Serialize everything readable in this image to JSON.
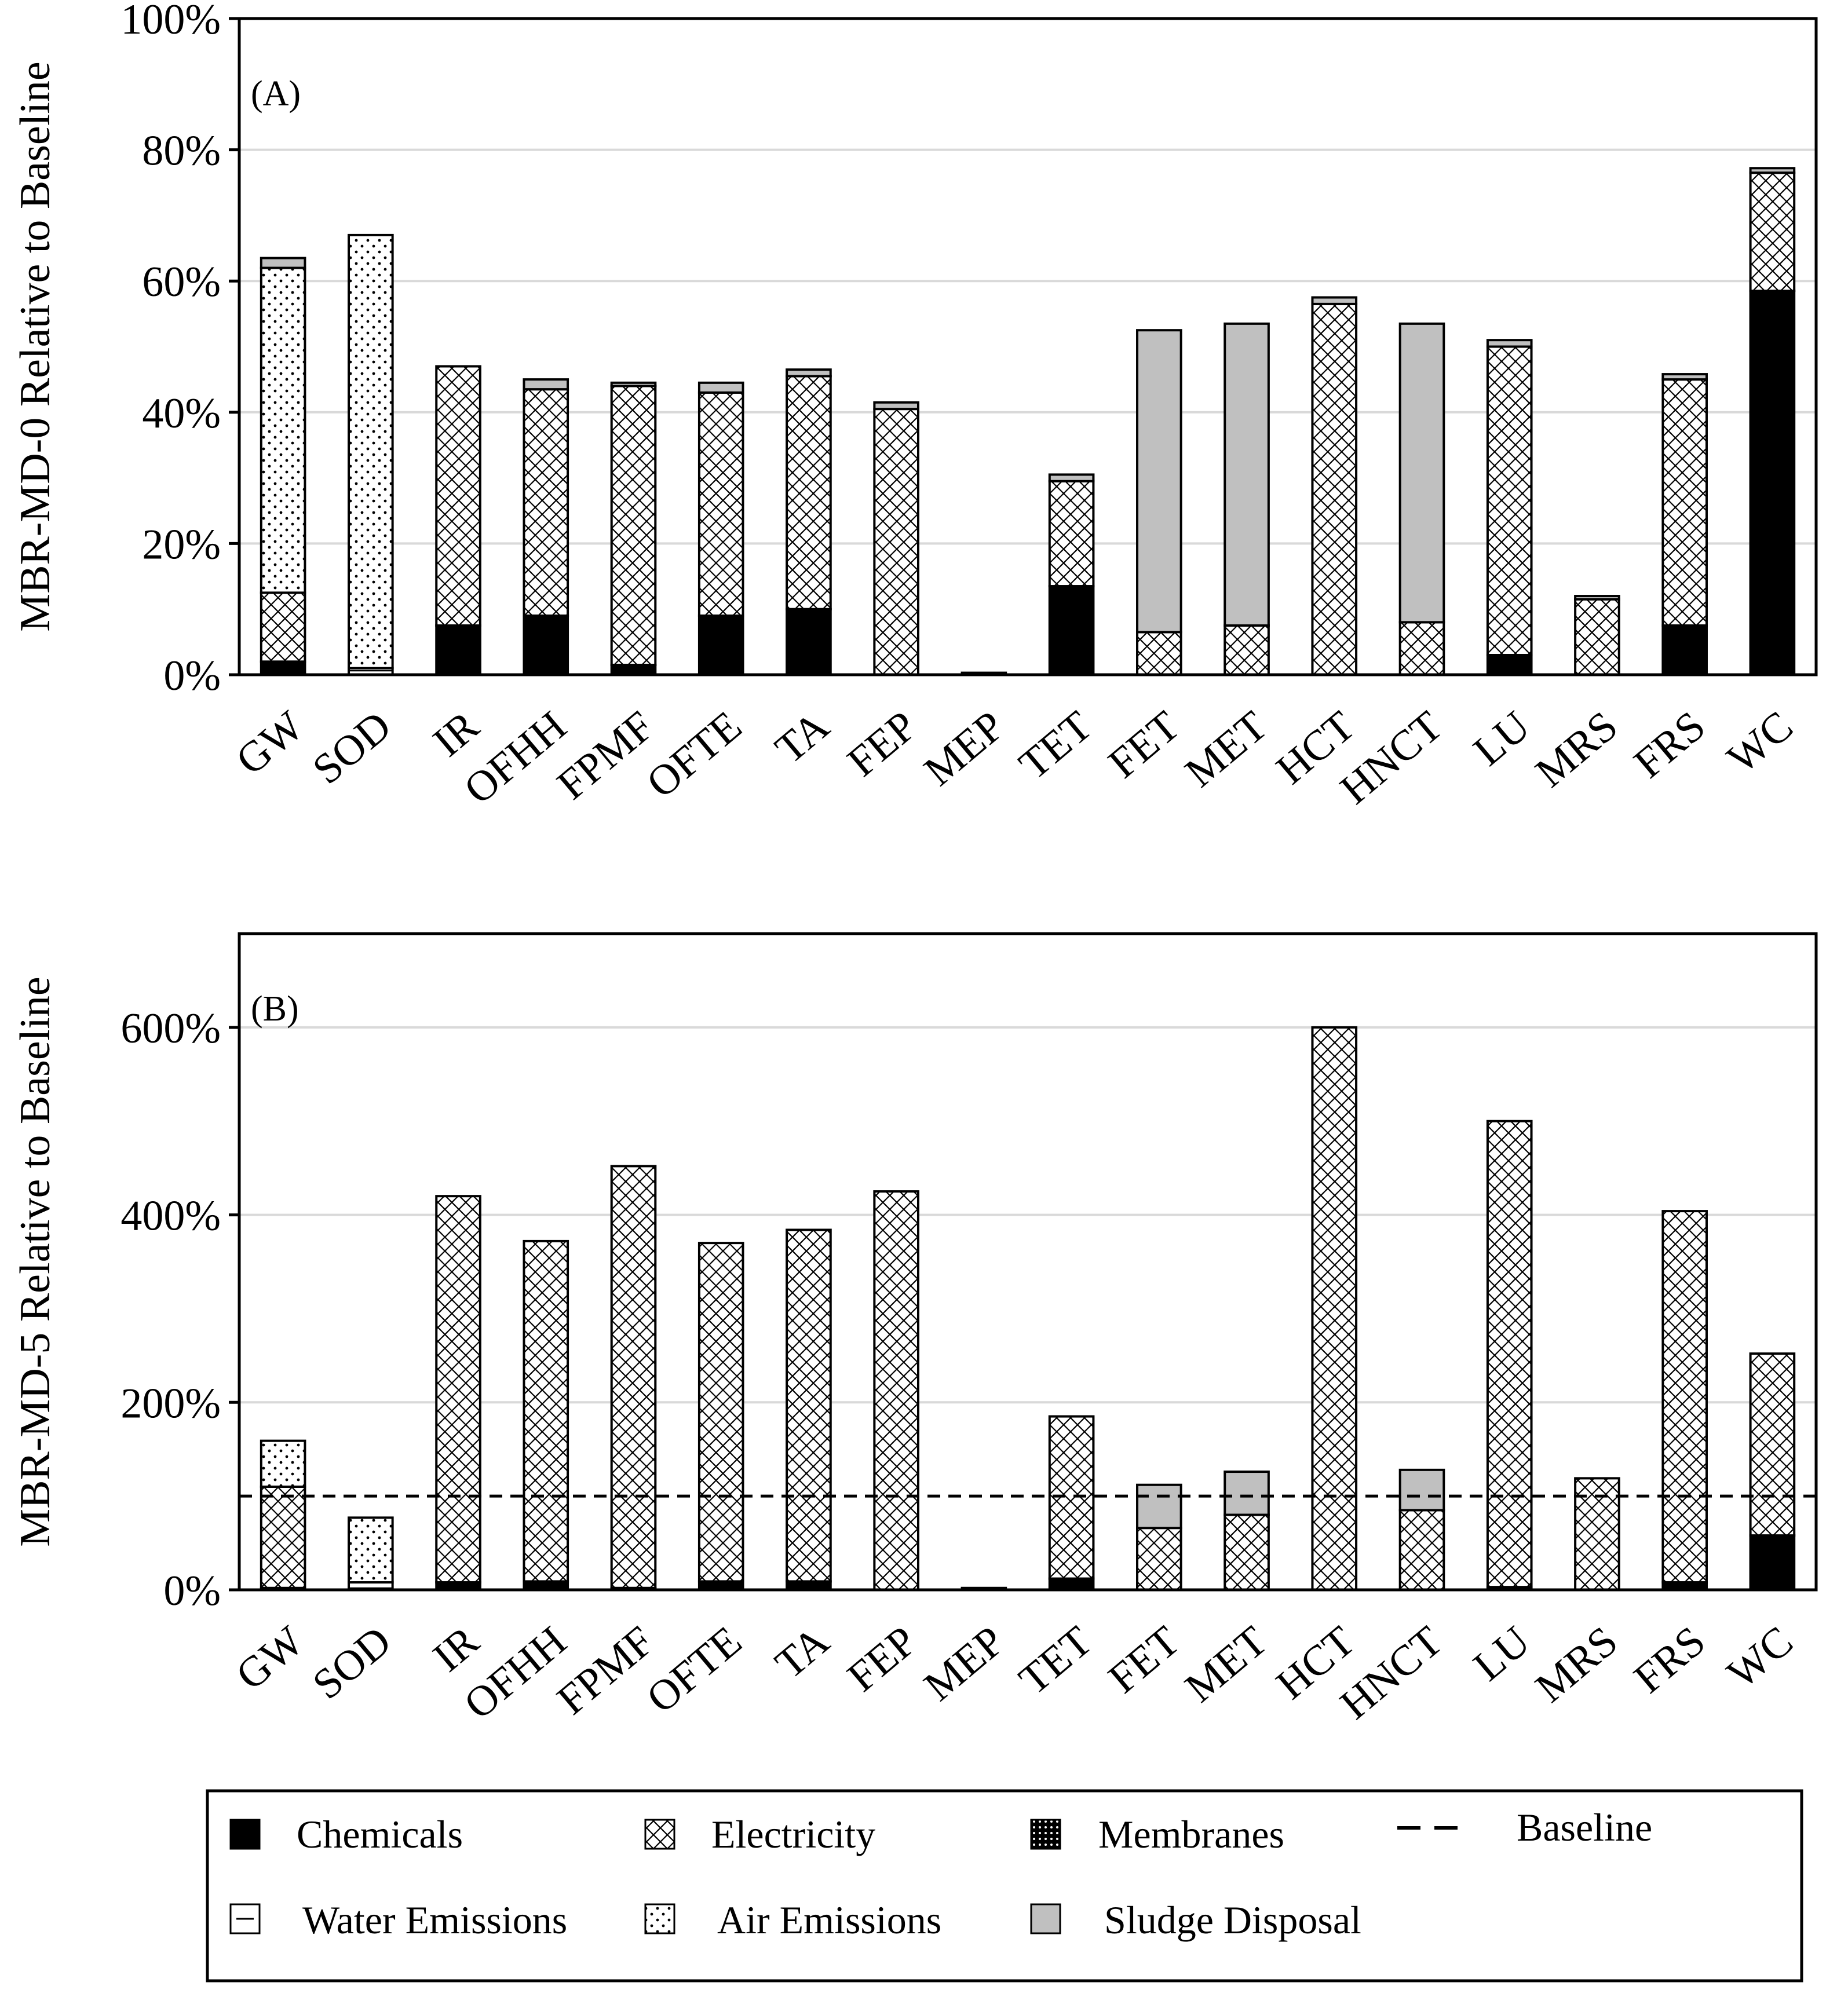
{
  "chart_data": [
    {
      "type": "bar",
      "stacked": true,
      "panel_label": "(A)",
      "ylabel": "MBR-MD-0 Relative to Baseline",
      "ylim": [
        0,
        100
      ],
      "yticks": [
        0,
        20,
        40,
        60,
        80,
        100
      ],
      "ytick_labels": [
        "0%",
        "20%",
        "40%",
        "60%",
        "80%",
        "100%"
      ],
      "baseline": 100,
      "categories": [
        "GW",
        "SOD",
        "IR",
        "OFHH",
        "FPMF",
        "OFTE",
        "TA",
        "FEP",
        "MEP",
        "TET",
        "FET",
        "MET",
        "HCT",
        "HNCT",
        "LU",
        "MRS",
        "FRS",
        "WC"
      ],
      "series": [
        {
          "name": "Chemicals",
          "values": [
            2,
            0,
            7.5,
            9,
            1.5,
            9,
            10,
            0,
            0,
            13.5,
            0,
            0,
            0,
            0,
            3,
            0,
            7.5,
            58.5
          ]
        },
        {
          "name": "Membranes",
          "values": [
            0,
            0,
            0,
            0,
            0,
            0,
            0,
            0,
            0.3,
            0,
            0,
            0,
            0,
            0,
            0,
            0,
            0,
            0
          ]
        },
        {
          "name": "Water Emissions",
          "values": [
            0,
            1,
            0,
            0,
            0,
            0,
            0,
            0,
            0,
            0,
            0,
            0,
            0,
            0,
            0,
            0,
            0,
            0
          ]
        },
        {
          "name": "Electricity",
          "values": [
            10.5,
            0,
            39.5,
            34.5,
            42.5,
            34,
            35.5,
            40.5,
            0,
            16,
            6.5,
            7.5,
            56.5,
            8,
            47,
            11.5,
            37.5,
            18
          ]
        },
        {
          "name": "Air Emissions",
          "values": [
            49.5,
            66,
            0,
            0,
            0,
            0,
            0,
            0,
            0,
            0,
            0,
            0,
            0,
            0,
            0,
            0,
            0,
            0
          ]
        },
        {
          "name": "Sludge Disposal",
          "values": [
            1.5,
            0,
            0,
            1.5,
            0.5,
            1.5,
            1,
            1,
            0,
            1,
            46,
            46,
            1,
            45.5,
            1,
            0.5,
            0.8,
            0.7
          ]
        }
      ]
    },
    {
      "type": "bar",
      "stacked": true,
      "panel_label": "(B)",
      "ylabel": "MBR-MD-5 Relative to Baseline",
      "ylim": [
        0,
        700
      ],
      "yticks": [
        0,
        200,
        400,
        600
      ],
      "ytick_labels": [
        "0%",
        "200%",
        "400%",
        "600%"
      ],
      "baseline": 100,
      "categories": [
        "GW",
        "SOD",
        "IR",
        "OFHH",
        "FPMF",
        "OFTE",
        "TA",
        "FEP",
        "MEP",
        "TET",
        "FET",
        "MET",
        "HCT",
        "HNCT",
        "LU",
        "MRS",
        "FRS",
        "WC"
      ],
      "series": [
        {
          "name": "Chemicals",
          "values": [
            2,
            0,
            8,
            9,
            2,
            9,
            9,
            0,
            0,
            12,
            0,
            0,
            0,
            0,
            3,
            0,
            8,
            58
          ]
        },
        {
          "name": "Membranes",
          "values": [
            0,
            0,
            0,
            0,
            0,
            0,
            0,
            0,
            2,
            0,
            0,
            0,
            0,
            0,
            0,
            0,
            0,
            0
          ]
        },
        {
          "name": "Water Emissions",
          "values": [
            0,
            8,
            0,
            0,
            0,
            0,
            0,
            0,
            0,
            0,
            0,
            0,
            0,
            0,
            0,
            0,
            0,
            0
          ]
        },
        {
          "name": "Electricity",
          "values": [
            108,
            0,
            412,
            363,
            450,
            361,
            375,
            425,
            0,
            173,
            66,
            80,
            600,
            85,
            497,
            119,
            396,
            194
          ]
        },
        {
          "name": "Air Emissions",
          "values": [
            49,
            69,
            0,
            0,
            0,
            0,
            0,
            0,
            0,
            0,
            0,
            0,
            0,
            0,
            0,
            0,
            0,
            0
          ]
        },
        {
          "name": "Sludge Disposal",
          "values": [
            0,
            0,
            0,
            0,
            0,
            0,
            0,
            0,
            0,
            0,
            46,
            46,
            0,
            43,
            0,
            0,
            0,
            0
          ]
        }
      ]
    }
  ],
  "legend": {
    "items": [
      {
        "label": "Chemicals",
        "key": "chemicals"
      },
      {
        "label": "Electricity",
        "key": "electricity"
      },
      {
        "label": "Membranes",
        "key": "membranes"
      },
      {
        "label": "Baseline",
        "key": "baseline"
      },
      {
        "label": "Water Emissions",
        "key": "water"
      },
      {
        "label": "Air Emissions",
        "key": "air"
      },
      {
        "label": "Sludge Disposal",
        "key": "sludge"
      }
    ]
  },
  "colors": {
    "chemicals": "#000000",
    "sludge": "#c0c0c0",
    "grid": "#d9d9d9",
    "axis": "#000000"
  }
}
